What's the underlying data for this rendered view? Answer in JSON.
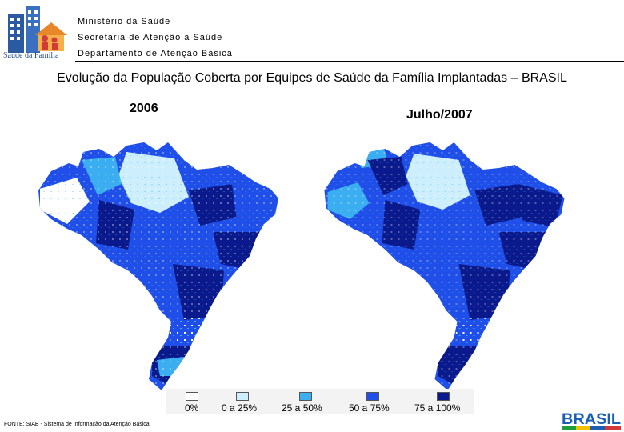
{
  "header": {
    "logo_caption": "Saúde da Família",
    "line1": "Ministério da Saúde",
    "line2": "Secretaria de Atenção a Saúde",
    "line3": "Departamento de Atenção Básica"
  },
  "title": "Evolução da População Coberta por Equipes de Saúde da Família Implantadas – BRASIL",
  "maps": [
    {
      "label": "2006",
      "icon": "brazil-map-icon"
    },
    {
      "label": "Julho/2007",
      "icon": "brazil-map-icon"
    }
  ],
  "legend": [
    {
      "label": "0%",
      "color": "#ffffff"
    },
    {
      "label": "0 a 25%",
      "color": "#cdeefc"
    },
    {
      "label": "25 a 50%",
      "color": "#3aaef0"
    },
    {
      "label": "50 a 75%",
      "color": "#1f4fe8"
    },
    {
      "label": "75 a 100%",
      "color": "#0a1a8c"
    }
  ],
  "footer": {
    "source": "FONTE: SIAB - Sistema de Informação da Atenção Básica"
  },
  "brand": {
    "text": "BRASIL"
  }
}
